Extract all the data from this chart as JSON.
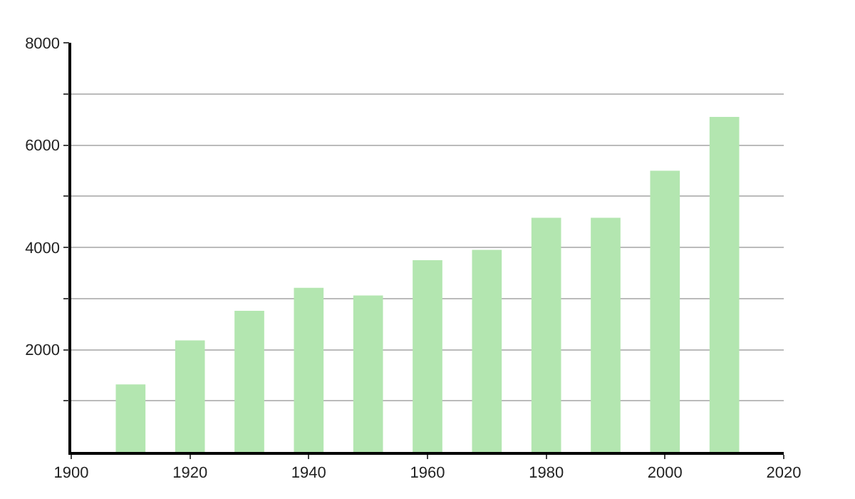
{
  "chart_data": {
    "type": "bar",
    "x": [
      1910,
      1920,
      1930,
      1940,
      1950,
      1960,
      1970,
      1980,
      1990,
      2000,
      2010
    ],
    "values": [
      1320,
      2180,
      2760,
      3210,
      3060,
      3750,
      3950,
      4580,
      4580,
      5500,
      6550
    ],
    "color": "#b3e6b0",
    "xlim": [
      1900,
      2020
    ],
    "xticks": [
      1900,
      1920,
      1940,
      1960,
      1980,
      2000,
      2020
    ],
    "ylim": [
      0,
      8000
    ],
    "yticks": [
      {
        "value": 1000,
        "label": null
      },
      2000,
      {
        "value": 3000,
        "label": null
      },
      4000,
      {
        "value": 5000,
        "label": null
      },
      6000,
      {
        "value": 7000,
        "label": null
      },
      8000
    ],
    "grid": "y"
  }
}
